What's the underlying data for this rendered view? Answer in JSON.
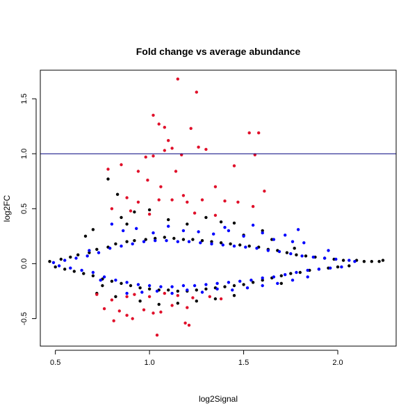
{
  "chart_data": {
    "type": "scatter",
    "title": "Fold change vs average abundance",
    "xlabel": "log2Signal",
    "ylabel": "log2FC",
    "xlim": [
      0.42,
      2.31
    ],
    "ylim": [
      -0.75,
      1.76
    ],
    "x_ticks": [
      0.5,
      1.0,
      1.5,
      2.0
    ],
    "x_tick_labels": [
      "0.5",
      "1.0",
      "1.5",
      "2.0"
    ],
    "y_ticks": [
      -0.5,
      0.0,
      0.5,
      1.0,
      1.5
    ],
    "y_tick_labels": [
      "-0.5",
      "0.0",
      "0.5",
      "1.0",
      "1.5"
    ],
    "reference_line": {
      "y": 1.0,
      "color": "#00007f"
    },
    "grid": false,
    "legend": "none",
    "colors": {
      "black": "#000000",
      "blue": "#0000ff",
      "red": "#e0102a"
    },
    "series": [
      {
        "color": "black",
        "points": [
          [
            0.47,
            0.02
          ],
          [
            0.5,
            -0.03
          ],
          [
            0.53,
            0.04
          ],
          [
            0.55,
            -0.05
          ],
          [
            0.58,
            0.06
          ],
          [
            0.6,
            -0.07
          ],
          [
            0.62,
            0.08
          ],
          [
            0.65,
            -0.09
          ],
          [
            0.68,
            0.1
          ],
          [
            0.7,
            -0.11
          ],
          [
            0.72,
            0.13
          ],
          [
            0.75,
            -0.14
          ],
          [
            0.78,
            0.15
          ],
          [
            0.8,
            -0.16
          ],
          [
            0.82,
            0.18
          ],
          [
            0.85,
            -0.18
          ],
          [
            0.88,
            0.2
          ],
          [
            0.9,
            -0.2
          ],
          [
            0.92,
            0.21
          ],
          [
            0.95,
            -0.22
          ],
          [
            0.98,
            0.22
          ],
          [
            1.0,
            -0.23
          ],
          [
            1.03,
            0.23
          ],
          [
            1.05,
            -0.24
          ],
          [
            1.08,
            0.24
          ],
          [
            1.1,
            -0.24
          ],
          [
            1.13,
            0.23
          ],
          [
            1.15,
            -0.25
          ],
          [
            1.18,
            0.22
          ],
          [
            1.2,
            -0.25
          ],
          [
            1.23,
            0.22
          ],
          [
            1.25,
            -0.24
          ],
          [
            1.28,
            0.21
          ],
          [
            1.3,
            -0.23
          ],
          [
            1.33,
            0.2
          ],
          [
            1.35,
            -0.22
          ],
          [
            1.38,
            0.19
          ],
          [
            1.4,
            -0.21
          ],
          [
            1.43,
            0.18
          ],
          [
            1.45,
            -0.2
          ],
          [
            1.48,
            0.17
          ],
          [
            1.5,
            -0.19
          ],
          [
            1.53,
            0.16
          ],
          [
            1.55,
            -0.17
          ],
          [
            1.58,
            0.15
          ],
          [
            1.6,
            -0.15
          ],
          [
            1.63,
            0.13
          ],
          [
            1.65,
            -0.13
          ],
          [
            1.68,
            0.12
          ],
          [
            1.7,
            -0.11
          ],
          [
            1.73,
            0.1
          ],
          [
            1.75,
            -0.09
          ],
          [
            1.78,
            0.08
          ],
          [
            1.8,
            -0.08
          ],
          [
            1.83,
            0.07
          ],
          [
            1.85,
            -0.06
          ],
          [
            1.88,
            0.06
          ],
          [
            1.9,
            -0.05
          ],
          [
            1.93,
            0.05
          ],
          [
            1.95,
            -0.04
          ],
          [
            1.98,
            0.04
          ],
          [
            2.0,
            -0.03
          ],
          [
            2.03,
            0.03
          ],
          [
            2.06,
            -0.02
          ],
          [
            2.1,
            0.03
          ],
          [
            2.14,
            0.02
          ],
          [
            2.18,
            0.02
          ],
          [
            2.22,
            0.02
          ],
          [
            2.24,
            0.03
          ],
          [
            0.78,
            0.77
          ],
          [
            0.83,
            0.63
          ],
          [
            0.75,
            -0.2
          ],
          [
            0.85,
            0.42
          ],
          [
            0.92,
            0.47
          ],
          [
            1.1,
            0.4
          ],
          [
            1.3,
            0.42
          ],
          [
            1.45,
            0.37
          ],
          [
            0.7,
            0.31
          ],
          [
            0.66,
            0.25
          ],
          [
            1.0,
            0.49
          ],
          [
            1.2,
            0.36
          ],
          [
            1.38,
            0.38
          ],
          [
            0.88,
            0.36
          ],
          [
            1.6,
            0.3
          ],
          [
            0.95,
            -0.34
          ],
          [
            1.05,
            -0.37
          ],
          [
            1.15,
            -0.36
          ],
          [
            1.25,
            -0.34
          ],
          [
            1.35,
            -0.32
          ],
          [
            1.45,
            -0.29
          ],
          [
            0.82,
            -0.3
          ],
          [
            0.72,
            -0.27
          ],
          [
            1.5,
            0.26
          ],
          [
            1.65,
            0.22
          ],
          [
            1.7,
            -0.18
          ],
          [
            1.77,
            0.14
          ]
        ]
      },
      {
        "color": "blue",
        "points": [
          [
            0.49,
            0.01
          ],
          [
            0.52,
            -0.02
          ],
          [
            0.55,
            0.03
          ],
          [
            0.58,
            -0.04
          ],
          [
            0.61,
            0.05
          ],
          [
            0.64,
            -0.06
          ],
          [
            0.67,
            0.07
          ],
          [
            0.7,
            -0.08
          ],
          [
            0.73,
            0.1
          ],
          [
            0.76,
            -0.12
          ],
          [
            0.79,
            0.14
          ],
          [
            0.82,
            -0.15
          ],
          [
            0.85,
            0.16
          ],
          [
            0.88,
            -0.17
          ],
          [
            0.91,
            0.18
          ],
          [
            0.94,
            -0.19
          ],
          [
            0.97,
            0.2
          ],
          [
            1.0,
            -0.2
          ],
          [
            1.03,
            0.21
          ],
          [
            1.06,
            -0.21
          ],
          [
            1.09,
            0.21
          ],
          [
            1.12,
            -0.21
          ],
          [
            1.15,
            0.2
          ],
          [
            1.18,
            -0.2
          ],
          [
            1.21,
            0.2
          ],
          [
            1.24,
            -0.2
          ],
          [
            1.27,
            0.19
          ],
          [
            1.3,
            -0.19
          ],
          [
            1.33,
            0.18
          ],
          [
            1.36,
            -0.18
          ],
          [
            1.39,
            0.17
          ],
          [
            1.42,
            -0.17
          ],
          [
            1.45,
            0.16
          ],
          [
            1.48,
            -0.16
          ],
          [
            1.51,
            0.15
          ],
          [
            1.54,
            -0.15
          ],
          [
            1.57,
            0.14
          ],
          [
            1.6,
            -0.13
          ],
          [
            1.63,
            0.12
          ],
          [
            1.66,
            -0.12
          ],
          [
            1.69,
            0.11
          ],
          [
            1.72,
            -0.1
          ],
          [
            1.75,
            0.09
          ],
          [
            1.78,
            -0.08
          ],
          [
            1.81,
            0.07
          ],
          [
            1.84,
            -0.06
          ],
          [
            1.87,
            0.06
          ],
          [
            1.9,
            -0.05
          ],
          [
            1.93,
            0.05
          ],
          [
            1.96,
            -0.04
          ],
          [
            1.99,
            0.04
          ],
          [
            2.02,
            -0.03
          ],
          [
            2.06,
            0.03
          ],
          [
            2.09,
            0.02
          ],
          [
            0.8,
            0.36
          ],
          [
            0.86,
            0.3
          ],
          [
            0.93,
            0.32
          ],
          [
            1.02,
            0.28
          ],
          [
            1.1,
            0.34
          ],
          [
            1.18,
            0.3
          ],
          [
            1.26,
            0.29
          ],
          [
            1.34,
            0.27
          ],
          [
            1.42,
            0.3
          ],
          [
            1.5,
            0.25
          ],
          [
            1.55,
            0.35
          ],
          [
            1.6,
            0.28
          ],
          [
            1.66,
            0.22
          ],
          [
            1.72,
            0.26
          ],
          [
            1.76,
            0.2
          ],
          [
            1.79,
            0.31
          ],
          [
            1.82,
            0.19
          ],
          [
            1.95,
            0.12
          ],
          [
            0.88,
            -0.27
          ],
          [
            0.96,
            -0.26
          ],
          [
            1.04,
            -0.25
          ],
          [
            1.12,
            -0.27
          ],
          [
            1.2,
            -0.24
          ],
          [
            1.28,
            -0.26
          ],
          [
            1.36,
            -0.23
          ],
          [
            1.44,
            -0.24
          ],
          [
            1.52,
            -0.22
          ],
          [
            1.6,
            -0.2
          ],
          [
            1.68,
            -0.18
          ],
          [
            1.76,
            -0.15
          ],
          [
            1.84,
            -0.12
          ],
          [
            0.74,
            -0.15
          ],
          [
            0.68,
            0.12
          ],
          [
            1.4,
            0.33
          ]
        ]
      },
      {
        "color": "red",
        "points": [
          [
            1.15,
            1.68
          ],
          [
            1.25,
            1.56
          ],
          [
            1.02,
            1.35
          ],
          [
            1.05,
            1.27
          ],
          [
            1.08,
            1.24
          ],
          [
            1.22,
            1.23
          ],
          [
            1.53,
            1.19
          ],
          [
            1.58,
            1.19
          ],
          [
            1.1,
            1.12
          ],
          [
            1.12,
            1.05
          ],
          [
            1.26,
            1.06
          ],
          [
            1.3,
            1.04
          ],
          [
            1.08,
            1.03
          ],
          [
            0.98,
            0.97
          ],
          [
            1.02,
            0.98
          ],
          [
            1.17,
            0.99
          ],
          [
            1.56,
            0.99
          ],
          [
            0.85,
            0.9
          ],
          [
            0.78,
            0.86
          ],
          [
            1.45,
            0.89
          ],
          [
            0.94,
            0.84
          ],
          [
            1.14,
            0.84
          ],
          [
            0.99,
            0.76
          ],
          [
            1.06,
            0.7
          ],
          [
            1.18,
            0.62
          ],
          [
            1.35,
            0.7
          ],
          [
            0.88,
            0.6
          ],
          [
            0.94,
            0.56
          ],
          [
            1.05,
            0.58
          ],
          [
            1.12,
            0.58
          ],
          [
            1.2,
            0.56
          ],
          [
            1.28,
            0.58
          ],
          [
            1.4,
            0.57
          ],
          [
            1.47,
            0.56
          ],
          [
            1.55,
            0.52
          ],
          [
            1.61,
            0.66
          ],
          [
            0.8,
            0.5
          ],
          [
            0.9,
            0.48
          ],
          [
            1.0,
            0.45
          ],
          [
            1.24,
            0.46
          ],
          [
            1.35,
            0.44
          ],
          [
            0.88,
            -0.3
          ],
          [
            0.92,
            -0.28
          ],
          [
            1.0,
            -0.3
          ],
          [
            1.08,
            -0.27
          ],
          [
            1.15,
            -0.29
          ],
          [
            1.23,
            -0.31
          ],
          [
            1.32,
            -0.3
          ],
          [
            1.38,
            -0.32
          ],
          [
            0.8,
            -0.33
          ],
          [
            0.84,
            -0.43
          ],
          [
            0.88,
            -0.47
          ],
          [
            0.91,
            -0.5
          ],
          [
            0.97,
            -0.42
          ],
          [
            1.02,
            -0.45
          ],
          [
            1.06,
            -0.44
          ],
          [
            1.12,
            -0.38
          ],
          [
            1.2,
            -0.4
          ],
          [
            1.19,
            -0.54
          ],
          [
            1.21,
            -0.56
          ],
          [
            1.04,
            -0.65
          ],
          [
            0.72,
            -0.28
          ],
          [
            0.76,
            -0.41
          ],
          [
            0.81,
            -0.52
          ]
        ]
      }
    ]
  }
}
